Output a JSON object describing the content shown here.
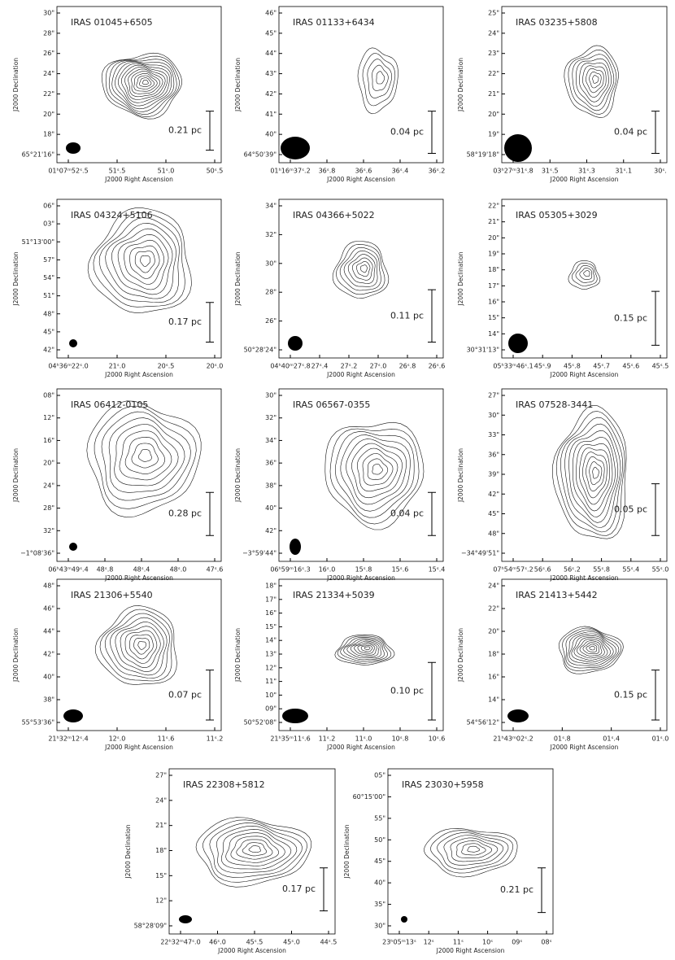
{
  "axis_labels": {
    "x": "J2000 Right Ascension",
    "y": "J2000 Declination"
  },
  "panels": [
    {
      "title": "IRAS 01045+6505",
      "scale": "0.21 pc",
      "yticks": [
        "30\"",
        "28\"",
        "26\"",
        "24\"",
        "22\"",
        "20\"",
        "18\"",
        "65°21'16\""
      ],
      "xticks": [
        "01ʰ07ᵐ52ˢ.5",
        "51ˢ.5",
        "51ˢ.0",
        "50ˢ.5"
      ]
    },
    {
      "title": "IRAS 01133+6434",
      "scale": "0.04 pc",
      "yticks": [
        "46\"",
        "45\"",
        "44\"",
        "43\"",
        "42\"",
        "41\"",
        "40\"",
        "64°50'39\""
      ],
      "xticks": [
        "01ʰ16ᵐ37ˢ.2",
        "36ˢ.8",
        "36ˢ.6",
        "36ˢ.4",
        "36ˢ.2"
      ]
    },
    {
      "title": "IRAS 03235+5808",
      "scale": "0.04 pc",
      "yticks": [
        "25\"",
        "24\"",
        "23\"",
        "22\"",
        "21\"",
        "20\"",
        "19\"",
        "58°19'18\""
      ],
      "xticks": [
        "03ʰ27ᵐ31ˢ.8",
        "31ˢ.5",
        "31ˢ.3",
        "31ˢ.1",
        "30ˢ."
      ]
    },
    {
      "title": "IRAS 04324+5106",
      "scale": "0.17 pc",
      "yticks": [
        "06\"",
        "03\"",
        "51°13'00\"",
        "57\"",
        "54\"",
        "51\"",
        "48\"",
        "45\"",
        "42\""
      ],
      "xticks": [
        "04ʰ36ᵐ22ˢ.0",
        "21ˢ.0",
        "20ˢ.5",
        "20ˢ.0"
      ]
    },
    {
      "title": "IRAS 04366+5022",
      "scale": "0.11 pc",
      "yticks": [
        "34\"",
        "32\"",
        "30\"",
        "28\"",
        "26\"",
        "50°28'24\""
      ],
      "xticks": [
        "04ʰ40ᵐ27ˢ.8",
        "27ˢ.4",
        "27ˢ.2",
        "27ˢ.0",
        "26ˢ.8",
        "26ˢ.6"
      ]
    },
    {
      "title": "IRAS 05305+3029",
      "scale": "0.15 pc",
      "yticks": [
        "22\"",
        "21\"",
        "20\"",
        "19\"",
        "18\"",
        "17\"",
        "16\"",
        "15\"",
        "14\"",
        "30°31'13\""
      ],
      "xticks": [
        "05ʰ33ᵐ46ˢ.1",
        "45ˢ.9",
        "45ˢ.8",
        "45ˢ.7",
        "45ˢ.6",
        "45ˢ.5"
      ]
    },
    {
      "title": "IRAS 06412-0105",
      "scale": "0.28 pc",
      "yticks": [
        "08\"",
        "12\"",
        "16\"",
        "20\"",
        "24\"",
        "28\"",
        "32\"",
        "−1°08'36\""
      ],
      "xticks": [
        "06ʰ43ᵐ49ˢ.4",
        "48ˢ.8",
        "48ˢ.4",
        "48ˢ.0",
        "47ˢ.6"
      ]
    },
    {
      "title": "IRAS 06567-0355",
      "scale": "0.04 pc",
      "yticks": [
        "30\"",
        "32\"",
        "34\"",
        "36\"",
        "38\"",
        "40\"",
        "42\"",
        "−3°59'44\""
      ],
      "xticks": [
        "06ʰ59ᵐ16ˢ.3",
        "16ˢ.0",
        "15ˢ.8",
        "15ˢ.6",
        "15ˢ.4"
      ]
    },
    {
      "title": "IRAS 07528-3441",
      "scale": "0.05 pc",
      "yticks": [
        "27\"",
        "30\"",
        "33\"",
        "36\"",
        "39\"",
        "42\"",
        "45\"",
        "48\"",
        "−34°49'51\""
      ],
      "xticks": [
        "07ʰ54ᵐ57ˢ.2",
        "56ˢ.6",
        "56ˢ.2",
        "55ˢ.8",
        "55ˢ.4",
        "55ˢ.0"
      ]
    },
    {
      "title": "IRAS 21306+5540",
      "scale": "0.07 pc",
      "yticks": [
        "48\"",
        "46\"",
        "44\"",
        "42\"",
        "40\"",
        "38\"",
        "55°53'36\""
      ],
      "xticks": [
        "21ʰ32ᵐ12ˢ.4",
        "12ˢ.0",
        "11ˢ.6",
        "11ˢ.2"
      ]
    },
    {
      "title": "IRAS 21334+5039",
      "scale": "0.10 pc",
      "yticks": [
        "18\"",
        "17\"",
        "16\"",
        "15\"",
        "14\"",
        "13\"",
        "12\"",
        "11\"",
        "10\"",
        "09\"",
        "50°52'08\""
      ],
      "xticks": [
        "21ʰ35ᵐ11ˢ.6",
        "11ˢ.2",
        "11ˢ.0",
        "10ˢ.8",
        "10ˢ.6"
      ]
    },
    {
      "title": "IRAS 21413+5442",
      "scale": "0.15 pc",
      "yticks": [
        "24\"",
        "22\"",
        "20\"",
        "18\"",
        "16\"",
        "14\"",
        "54°56'12\""
      ],
      "xticks": [
        "21ʰ43ᵐ02ˢ.2",
        "01ˢ.8",
        "01ˢ.4",
        "01ˢ.0"
      ]
    },
    {
      "title": "IRAS 22308+5812",
      "scale": "0.17 pc",
      "yticks": [
        "27\"",
        "24\"",
        "21\"",
        "18\"",
        "15\"",
        "12\"",
        "58°28'09\""
      ],
      "xticks": [
        "22ʰ32ᵐ47ˢ.0",
        "46ˢ.0",
        "45ˢ.5",
        "45ˢ.0",
        "44ˢ.5"
      ]
    },
    {
      "title": "IRAS 23030+5958",
      "scale": "0.21 pc",
      "yticks": [
        "05\"",
        "60°15'00\"",
        "55\"",
        "50\"",
        "45\"",
        "40\"",
        "35\"",
        "30\""
      ],
      "xticks": [
        "23ʰ05ᵐ13ˢ",
        "12ˢ",
        "11ˢ",
        "10ˢ",
        "09ˢ",
        "08ˢ"
      ]
    }
  ]
}
